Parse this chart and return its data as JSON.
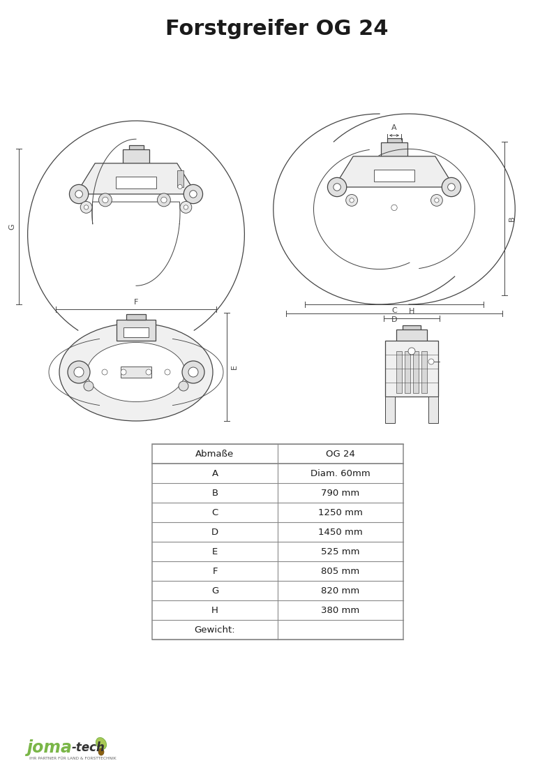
{
  "title": "Forstgreifer OG 24",
  "title_fontsize": 22,
  "title_fontweight": "bold",
  "table_headers": [
    "Abmaße",
    "OG 24"
  ],
  "table_rows": [
    [
      "A",
      "Diam. 60mm"
    ],
    [
      "B",
      "790 mm"
    ],
    [
      "C",
      "1250 mm"
    ],
    [
      "D",
      "1450 mm"
    ],
    [
      "E",
      "525 mm"
    ],
    [
      "F",
      "805 mm"
    ],
    [
      "G",
      "820 mm"
    ],
    [
      "H",
      "380 mm"
    ],
    [
      "Gewicht:",
      ""
    ]
  ],
  "bg_color": "#ffffff",
  "line_color": "#444444",
  "table_line_color": "#888888",
  "joma_green": "#7ab648"
}
